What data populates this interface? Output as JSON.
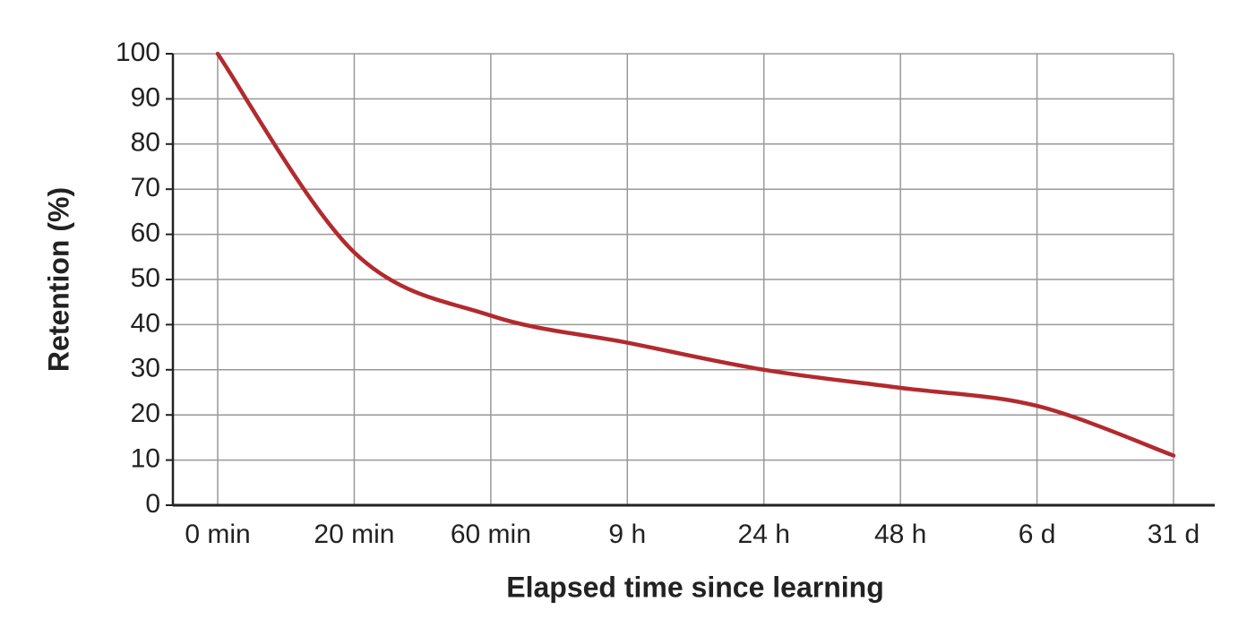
{
  "chart_data": {
    "type": "line",
    "x_label": "Elapsed time since learning",
    "y_label": "Retention (%)",
    "categories": [
      "0 min",
      "20 min",
      "60 min",
      "9 h",
      "24 h",
      "48 h",
      "6 d",
      "31 d"
    ],
    "series": [
      {
        "color": "#b22a2e",
        "values": [
          100,
          56,
          42,
          36,
          30,
          26,
          22,
          11
        ]
      }
    ],
    "ylim": [
      0,
      100
    ],
    "yticks": [
      0,
      10,
      20,
      30,
      40,
      50,
      60,
      70,
      80,
      90,
      100
    ],
    "grid": true
  }
}
